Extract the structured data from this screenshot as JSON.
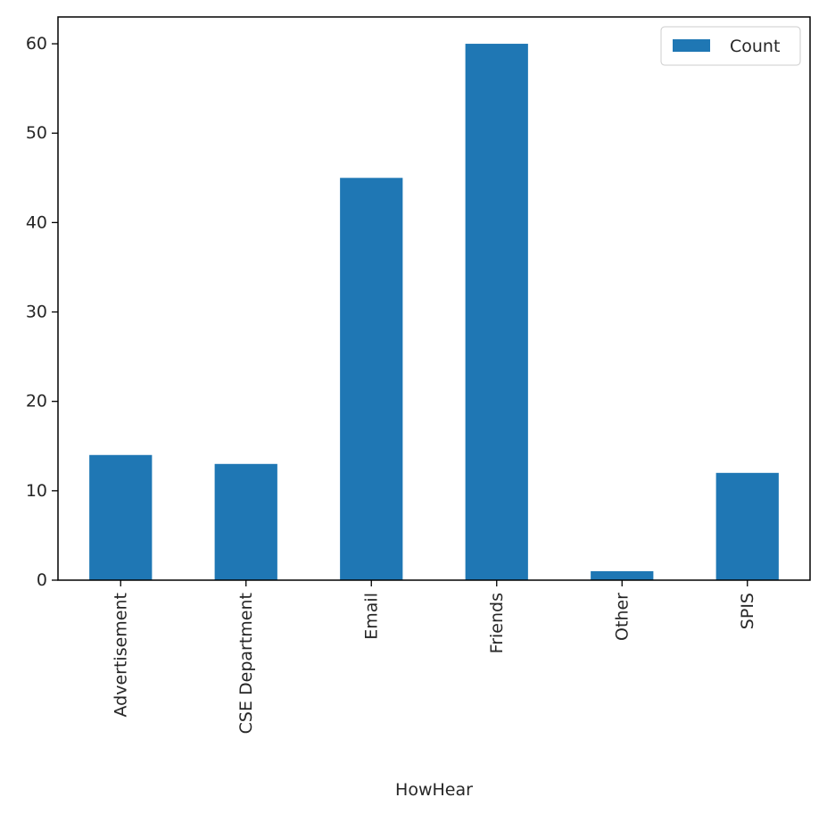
{
  "chart_data": {
    "type": "bar",
    "title": "",
    "xlabel": "HowHear",
    "ylabel": "",
    "categories": [
      "Advertisement",
      "CSE Department",
      "Email",
      "Friends",
      "Other",
      "SPIS"
    ],
    "series": [
      {
        "name": "Count",
        "values": [
          14,
          13,
          45,
          60,
          1,
          12
        ],
        "color": "#1f77b4"
      }
    ],
    "ylim": [
      0,
      63
    ],
    "yticks": [
      0,
      10,
      20,
      30,
      40,
      50,
      60
    ],
    "grid": false,
    "legend": {
      "position": "top-right",
      "entries": [
        "Count"
      ]
    }
  }
}
